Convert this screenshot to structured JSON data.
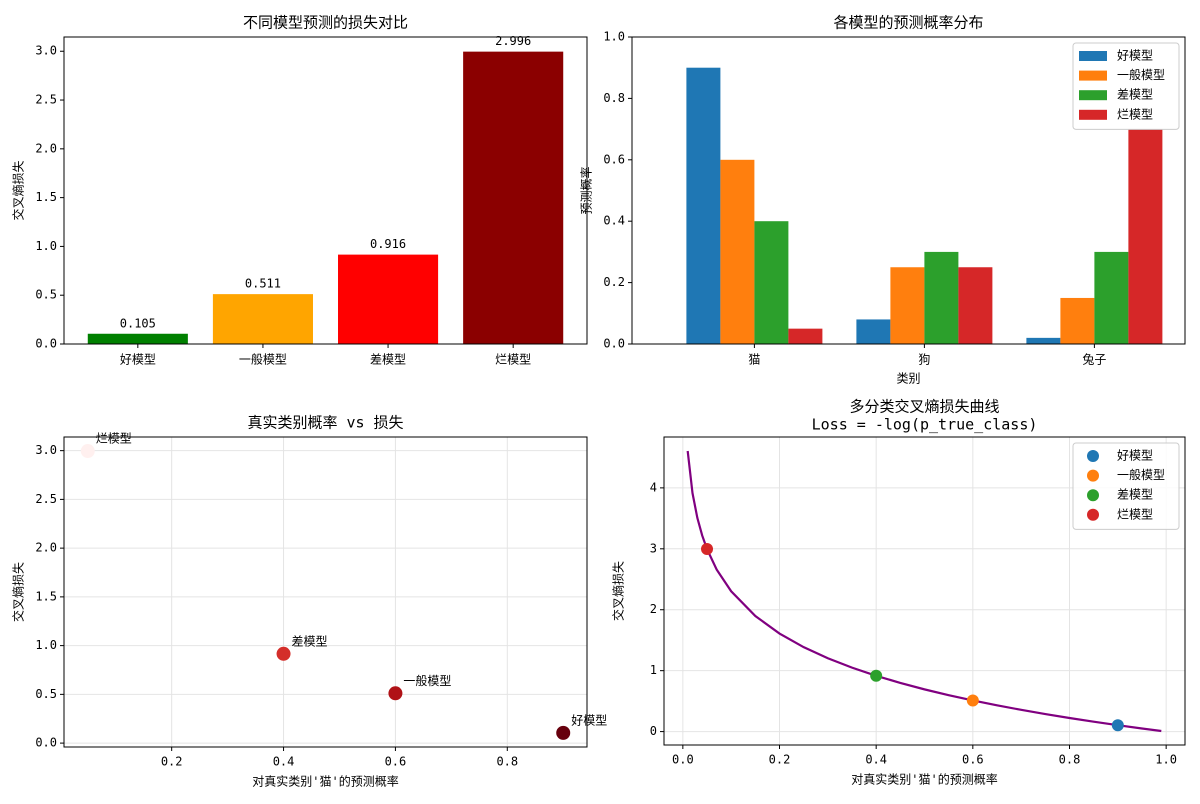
{
  "chart_data": [
    {
      "type": "bar",
      "title": "不同模型预测的损失对比",
      "ylabel": "交叉熵损失",
      "categories": [
        "好模型",
        "一般模型",
        "差模型",
        "烂模型"
      ],
      "values": [
        0.105,
        0.511,
        0.916,
        2.996
      ],
      "colors": [
        "#008000",
        "#ffa500",
        "#ff0000",
        "#8b0000"
      ],
      "ylim": [
        0,
        3.146
      ],
      "yticks": [
        {
          "value": 0,
          "label": "0.0"
        },
        0.5,
        {
          "value": 1,
          "label": "1.0"
        },
        1.5,
        {
          "value": 2,
          "label": "2.0"
        },
        2.5,
        {
          "value": 3,
          "label": "3.0"
        }
      ],
      "grid": false
    },
    {
      "type": "grouped_bar",
      "title": "各模型的预测概率分布",
      "xlabel": "类别",
      "ylabel": "预测概率",
      "categories": [
        "猫",
        "狗",
        "兔子"
      ],
      "series": [
        {
          "name": "好模型",
          "color": "#1f77b4",
          "values": [
            0.9,
            0.08,
            0.02
          ]
        },
        {
          "name": "一般模型",
          "color": "#ff7f0e",
          "values": [
            0.6,
            0.25,
            0.15
          ]
        },
        {
          "name": "差模型",
          "color": "#2ca02c",
          "values": [
            0.4,
            0.3,
            0.3
          ]
        },
        {
          "name": "烂模型",
          "color": "#d62728",
          "values": [
            0.05,
            0.25,
            0.7
          ]
        }
      ],
      "ylim": [
        0,
        1
      ],
      "yticks": [
        {
          "value": 0,
          "label": "0.0"
        },
        0.2,
        0.4,
        0.6,
        0.8,
        {
          "value": 1,
          "label": "1.0"
        }
      ],
      "legend": "upper right",
      "grid": false
    },
    {
      "type": "scatter",
      "title": "真实类别概率 vs 损失",
      "xlabel": "对真实类别'猫'的预测概率",
      "ylabel": "交叉熵损失",
      "labels": [
        "好模型",
        "一般模型",
        "差模型",
        "烂模型"
      ],
      "x": [
        0.9,
        0.6,
        0.4,
        0.05
      ],
      "values": [
        0.105,
        0.511,
        0.916,
        2.996
      ],
      "colors": [
        "#67000d",
        "#b01217",
        "#d42e2a",
        "#fff0ef"
      ],
      "xlim": [
        0.0075,
        0.9425
      ],
      "xticks": [
        0.2,
        0.4,
        0.6,
        0.8
      ],
      "ylim": [
        -0.04,
        3.14
      ],
      "yticks": [
        {
          "value": 0,
          "label": "0.0"
        },
        0.5,
        {
          "value": 1,
          "label": "1.0"
        },
        1.5,
        {
          "value": 2,
          "label": "2.0"
        },
        2.5,
        {
          "value": 3,
          "label": "3.0"
        }
      ],
      "grid": true
    },
    {
      "type": "line",
      "title": "多分类交叉熵损失曲线",
      "subtitle": "Loss = -log(p_true_class)",
      "xlabel": "对真实类别'猫'的预测概率",
      "ylabel": "交叉熵损失",
      "curve": {
        "color": "#800080",
        "x": [
          0.01,
          0.02,
          0.03,
          0.04,
          0.05,
          0.07,
          0.1,
          0.15,
          0.2,
          0.25,
          0.3,
          0.35,
          0.4,
          0.45,
          0.5,
          0.55,
          0.6,
          0.65,
          0.7,
          0.75,
          0.8,
          0.85,
          0.9,
          0.95,
          0.99
        ],
        "values": [
          4.605,
          3.912,
          3.507,
          3.219,
          2.996,
          2.659,
          2.303,
          1.897,
          1.609,
          1.386,
          1.204,
          1.05,
          0.916,
          0.799,
          0.693,
          0.598,
          0.511,
          0.431,
          0.357,
          0.288,
          0.223,
          0.163,
          0.105,
          0.051,
          0.01
        ]
      },
      "series": [
        {
          "name": "好模型",
          "color": "#1f77b4",
          "x": [
            0.9
          ],
          "values": [
            0.105
          ]
        },
        {
          "name": "一般模型",
          "color": "#ff7f0e",
          "x": [
            0.6
          ],
          "values": [
            0.511
          ]
        },
        {
          "name": "差模型",
          "color": "#2ca02c",
          "x": [
            0.4
          ],
          "values": [
            0.916
          ]
        },
        {
          "name": "烂模型",
          "color": "#d62728",
          "x": [
            0.05
          ],
          "values": [
            2.996
          ]
        }
      ],
      "xlim": [
        -0.039,
        1.039
      ],
      "xticks": [
        {
          "value": 0,
          "label": "0.0"
        },
        0.2,
        0.4,
        0.6,
        0.8,
        {
          "value": 1,
          "label": "1.0"
        }
      ],
      "ylim": [
        -0.22,
        4.835
      ],
      "yticks": [
        0,
        1,
        2,
        3,
        4
      ],
      "legend": "upper right",
      "grid": true
    }
  ]
}
